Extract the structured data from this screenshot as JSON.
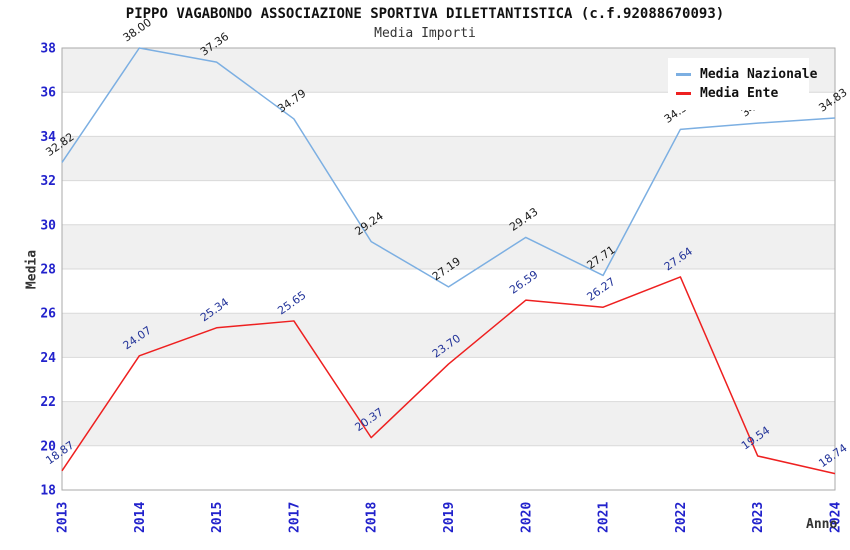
{
  "header": {
    "title": "PIPPO VAGABONDO ASSOCIAZIONE SPORTIVA DILETTANTISTICA (c.f.92088670093)",
    "subtitle": "Media Importi"
  },
  "legend": {
    "items": [
      {
        "label": "Media Nazionale",
        "color": "#7cafe2"
      },
      {
        "label": "Media Ente",
        "color": "#ee2020"
      }
    ]
  },
  "axes": {
    "y_title": "Media",
    "x_title": "Anno",
    "tick_color": "#2222cc"
  },
  "chart_data": {
    "type": "line",
    "title": "PIPPO VAGABONDO ASSOCIAZIONE SPORTIVA DILETTANTISTICA (c.f.92088670093)",
    "subtitle": "Media Importi",
    "xlabel": "Anno",
    "ylabel": "Media",
    "categories": [
      "2013",
      "2014",
      "2015",
      "2017",
      "2018",
      "2019",
      "2020",
      "2021",
      "2022",
      "2023",
      "2024"
    ],
    "series": [
      {
        "name": "Media Nazionale",
        "color": "#7cafe2",
        "label_color": "#1a1a1a",
        "values": [
          32.82,
          38.0,
          37.36,
          34.79,
          29.24,
          27.19,
          29.43,
          27.71,
          34.32,
          34.6,
          34.83
        ]
      },
      {
        "name": "Media Ente",
        "color": "#ee2020",
        "label_color": "#223399",
        "values": [
          18.87,
          24.07,
          25.34,
          25.65,
          20.37,
          23.7,
          26.59,
          26.27,
          27.64,
          19.54,
          18.74
        ]
      }
    ],
    "ylim": [
      18,
      38
    ],
    "ytick_step": 2,
    "grid": "horizontal-only",
    "band_fill": "#f0f0f0",
    "gridline_color": "#d9d9d9",
    "plot_border_color": "#aaaaaa",
    "legend_position": "top-right",
    "value_label_format": "2-decimals-rotated"
  }
}
